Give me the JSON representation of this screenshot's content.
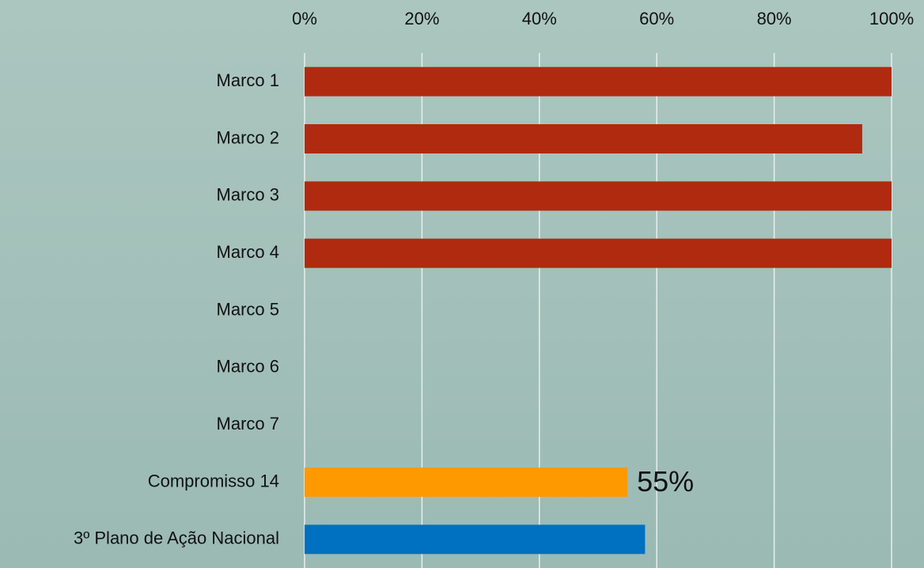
{
  "chart_data": {
    "type": "barh",
    "categories": [
      "Marco 1",
      "Marco 2",
      "Marco 3",
      "Marco 4",
      "Marco 5",
      "Marco 6",
      "Marco 7",
      "Compromisso 14",
      "3º Plano de Ação Nacional"
    ],
    "values": [
      100,
      95,
      100,
      100,
      0,
      0,
      0,
      55,
      58
    ],
    "value_labels": [
      null,
      null,
      null,
      null,
      null,
      null,
      null,
      "55%",
      null
    ],
    "colors": [
      "#b02a10",
      "#b02a10",
      "#b02a10",
      "#b02a10",
      "#b02a10",
      "#b02a10",
      "#b02a10",
      "#ff9900",
      "#0070c0"
    ],
    "xlim": [
      0,
      100
    ],
    "xticks": [
      {
        "value": 0,
        "label": "0%"
      },
      {
        "value": 20,
        "label": "20%"
      },
      {
        "value": 40,
        "label": "40%"
      },
      {
        "value": 60,
        "label": "60%"
      },
      {
        "value": 80,
        "label": "80%"
      },
      {
        "value": 100,
        "label": "100%"
      }
    ],
    "grid": true
  }
}
